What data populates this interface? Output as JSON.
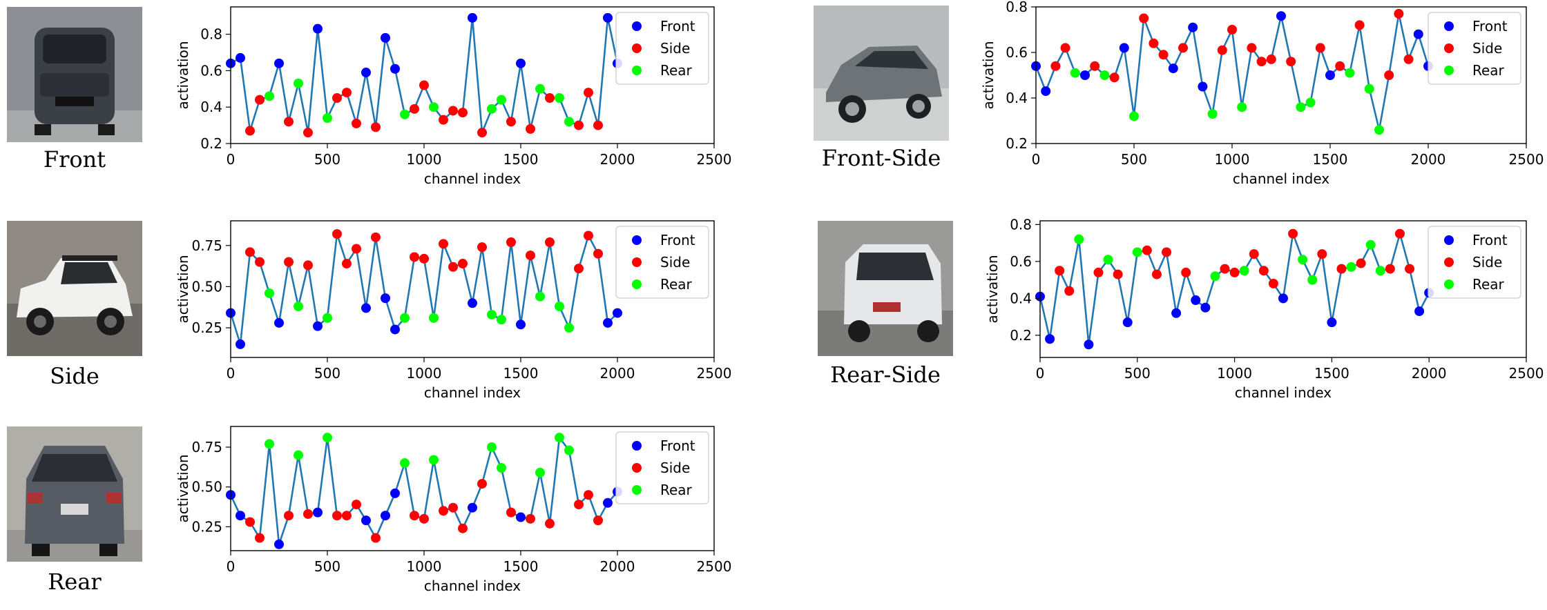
{
  "legend_labels": [
    "Front",
    "Side",
    "Rear"
  ],
  "colors": {
    "line": "#1f77b4",
    "Front": "#0000ff",
    "Side": "#ff0000",
    "Rear": "#00ff00",
    "frame": "#000000"
  },
  "axis_label_x": "channel index",
  "axis_label_y": "activation",
  "panels": [
    {
      "caption": "Front",
      "icon": "car-front-photo"
    },
    {
      "caption": "Front-Side",
      "icon": "car-front-side-photo"
    },
    {
      "caption": "Side",
      "icon": "car-side-photo"
    },
    {
      "caption": "Rear-Side",
      "icon": "car-rear-side-photo"
    },
    {
      "caption": "Rear",
      "icon": "car-rear-photo"
    }
  ],
  "chart_data": [
    {
      "type": "scatter",
      "xlabel": "channel index",
      "ylabel": "activation",
      "xlim": [
        0,
        2500
      ],
      "ylim": [
        0.2,
        0.95
      ],
      "xticks": [
        0,
        500,
        1000,
        1500,
        2000,
        2500
      ],
      "yticks": [
        0.2,
        0.4,
        0.6,
        0.8
      ],
      "ytick_labels": [
        "0.2",
        "0.4",
        "0.6",
        "0.8"
      ],
      "legend": "top-right",
      "x": [
        0,
        50,
        100,
        150,
        200,
        250,
        300,
        350,
        400,
        450,
        500,
        550,
        600,
        650,
        700,
        750,
        800,
        850,
        900,
        950,
        1000,
        1050,
        1100,
        1150,
        1200,
        1250,
        1300,
        1350,
        1400,
        1450,
        1500,
        1550,
        1600,
        1650,
        1700,
        1750,
        1800,
        1850,
        1900,
        1950,
        2000
      ],
      "values": [
        0.64,
        0.67,
        0.27,
        0.44,
        0.46,
        0.64,
        0.32,
        0.53,
        0.26,
        0.83,
        0.34,
        0.45,
        0.48,
        0.31,
        0.59,
        0.29,
        0.78,
        0.61,
        0.36,
        0.39,
        0.52,
        0.4,
        0.33,
        0.38,
        0.37,
        0.89,
        0.26,
        0.39,
        0.44,
        0.32,
        0.64,
        0.28,
        0.5,
        0.45,
        0.45,
        0.32,
        0.3,
        0.48,
        0.3,
        0.89,
        0.64
      ],
      "view": [
        "Front",
        "Front",
        "Side",
        "Side",
        "Rear",
        "Front",
        "Side",
        "Rear",
        "Side",
        "Front",
        "Rear",
        "Side",
        "Side",
        "Side",
        "Front",
        "Side",
        "Front",
        "Front",
        "Rear",
        "Side",
        "Side",
        "Rear",
        "Side",
        "Side",
        "Side",
        "Front",
        "Side",
        "Rear",
        "Rear",
        "Side",
        "Front",
        "Side",
        "Rear",
        "Side",
        "Rear",
        "Rear",
        "Side",
        "Side",
        "Side",
        "Front",
        "Front"
      ]
    },
    {
      "type": "scatter",
      "xlabel": "channel index",
      "ylabel": "activation",
      "xlim": [
        0,
        2500
      ],
      "ylim": [
        0.2,
        0.8
      ],
      "xticks": [
        0,
        500,
        1000,
        1500,
        2000,
        2500
      ],
      "yticks": [
        0.2,
        0.4,
        0.6,
        0.8
      ],
      "ytick_labels": [
        "0.2",
        "0.4",
        "0.6",
        "0.8"
      ],
      "legend": "top-right",
      "x": [
        0,
        50,
        100,
        150,
        200,
        250,
        300,
        350,
        400,
        450,
        500,
        550,
        600,
        650,
        700,
        750,
        800,
        850,
        900,
        950,
        1000,
        1050,
        1100,
        1150,
        1200,
        1250,
        1300,
        1350,
        1400,
        1450,
        1500,
        1550,
        1600,
        1650,
        1700,
        1750,
        1800,
        1850,
        1900,
        1950,
        2000
      ],
      "values": [
        0.54,
        0.43,
        0.54,
        0.62,
        0.51,
        0.5,
        0.54,
        0.5,
        0.49,
        0.62,
        0.32,
        0.75,
        0.64,
        0.59,
        0.53,
        0.62,
        0.71,
        0.45,
        0.33,
        0.61,
        0.7,
        0.36,
        0.62,
        0.56,
        0.57,
        0.76,
        0.56,
        0.36,
        0.38,
        0.62,
        0.5,
        0.54,
        0.51,
        0.72,
        0.44,
        0.26,
        0.5,
        0.77,
        0.57,
        0.68,
        0.54
      ],
      "view": [
        "Front",
        "Front",
        "Side",
        "Side",
        "Rear",
        "Front",
        "Side",
        "Rear",
        "Side",
        "Front",
        "Rear",
        "Side",
        "Side",
        "Side",
        "Front",
        "Side",
        "Front",
        "Front",
        "Rear",
        "Side",
        "Side",
        "Rear",
        "Side",
        "Side",
        "Side",
        "Front",
        "Side",
        "Rear",
        "Rear",
        "Side",
        "Front",
        "Side",
        "Rear",
        "Side",
        "Rear",
        "Rear",
        "Side",
        "Side",
        "Side",
        "Front",
        "Front"
      ]
    },
    {
      "type": "scatter",
      "xlabel": "channel index",
      "ylabel": "activation",
      "xlim": [
        0,
        2500
      ],
      "ylim": [
        0.07,
        0.9
      ],
      "xticks": [
        0,
        500,
        1000,
        1500,
        2000,
        2500
      ],
      "yticks": [
        0.25,
        0.5,
        0.75
      ],
      "ytick_labels": [
        "0.25",
        "0.50",
        "0.75"
      ],
      "legend": "top-right",
      "x": [
        0,
        50,
        100,
        150,
        200,
        250,
        300,
        350,
        400,
        450,
        500,
        550,
        600,
        650,
        700,
        750,
        800,
        850,
        900,
        950,
        1000,
        1050,
        1100,
        1150,
        1200,
        1250,
        1300,
        1350,
        1400,
        1450,
        1500,
        1550,
        1600,
        1650,
        1700,
        1750,
        1800,
        1850,
        1900,
        1950,
        2000
      ],
      "values": [
        0.34,
        0.15,
        0.71,
        0.65,
        0.46,
        0.28,
        0.65,
        0.38,
        0.63,
        0.26,
        0.31,
        0.82,
        0.64,
        0.73,
        0.37,
        0.8,
        0.43,
        0.24,
        0.31,
        0.68,
        0.67,
        0.31,
        0.76,
        0.62,
        0.64,
        0.4,
        0.74,
        0.33,
        0.3,
        0.77,
        0.27,
        0.69,
        0.44,
        0.77,
        0.38,
        0.25,
        0.61,
        0.81,
        0.7,
        0.28,
        0.34
      ],
      "view": [
        "Front",
        "Front",
        "Side",
        "Side",
        "Rear",
        "Front",
        "Side",
        "Rear",
        "Side",
        "Front",
        "Rear",
        "Side",
        "Side",
        "Side",
        "Front",
        "Side",
        "Front",
        "Front",
        "Rear",
        "Side",
        "Side",
        "Rear",
        "Side",
        "Side",
        "Side",
        "Front",
        "Side",
        "Rear",
        "Rear",
        "Side",
        "Front",
        "Side",
        "Rear",
        "Side",
        "Rear",
        "Rear",
        "Side",
        "Side",
        "Side",
        "Front",
        "Front"
      ]
    },
    {
      "type": "scatter",
      "xlabel": "channel index",
      "ylabel": "activation",
      "xlim": [
        0,
        2500
      ],
      "ylim": [
        0.08,
        0.82
      ],
      "xticks": [
        0,
        500,
        1000,
        1500,
        2000,
        2500
      ],
      "yticks": [
        0.2,
        0.4,
        0.6,
        0.8
      ],
      "ytick_labels": [
        "0.2",
        "0.4",
        "0.6",
        "0.8"
      ],
      "legend": "top-right",
      "x": [
        0,
        50,
        100,
        150,
        200,
        250,
        300,
        350,
        400,
        450,
        500,
        550,
        600,
        650,
        700,
        750,
        800,
        850,
        900,
        950,
        1000,
        1050,
        1100,
        1150,
        1200,
        1250,
        1300,
        1350,
        1400,
        1450,
        1500,
        1550,
        1600,
        1650,
        1700,
        1750,
        1800,
        1850,
        1900,
        1950,
        2000
      ],
      "values": [
        0.41,
        0.18,
        0.55,
        0.44,
        0.72,
        0.15,
        0.54,
        0.61,
        0.53,
        0.27,
        0.65,
        0.66,
        0.53,
        0.65,
        0.32,
        0.54,
        0.39,
        0.35,
        0.52,
        0.56,
        0.54,
        0.55,
        0.64,
        0.55,
        0.48,
        0.4,
        0.75,
        0.61,
        0.5,
        0.64,
        0.27,
        0.56,
        0.57,
        0.59,
        0.69,
        0.55,
        0.56,
        0.75,
        0.56,
        0.33,
        0.43
      ],
      "view": [
        "Front",
        "Front",
        "Side",
        "Side",
        "Rear",
        "Front",
        "Side",
        "Rear",
        "Side",
        "Front",
        "Rear",
        "Side",
        "Side",
        "Side",
        "Front",
        "Side",
        "Front",
        "Front",
        "Rear",
        "Side",
        "Side",
        "Rear",
        "Side",
        "Side",
        "Side",
        "Front",
        "Side",
        "Rear",
        "Rear",
        "Side",
        "Front",
        "Side",
        "Rear",
        "Side",
        "Rear",
        "Rear",
        "Side",
        "Side",
        "Side",
        "Front",
        "Front"
      ]
    },
    {
      "type": "scatter",
      "xlabel": "channel index",
      "ylabel": "activation",
      "xlim": [
        0,
        2500
      ],
      "ylim": [
        0.1,
        0.88
      ],
      "xticks": [
        0,
        500,
        1000,
        1500,
        2000,
        2500
      ],
      "yticks": [
        0.25,
        0.5,
        0.75
      ],
      "ytick_labels": [
        "0.25",
        "0.50",
        "0.75"
      ],
      "legend": "top-right",
      "x": [
        0,
        50,
        100,
        150,
        200,
        250,
        300,
        350,
        400,
        450,
        500,
        550,
        600,
        650,
        700,
        750,
        800,
        850,
        900,
        950,
        1000,
        1050,
        1100,
        1150,
        1200,
        1250,
        1300,
        1350,
        1400,
        1450,
        1500,
        1550,
        1600,
        1650,
        1700,
        1750,
        1800,
        1850,
        1900,
        1950,
        2000
      ],
      "values": [
        0.45,
        0.32,
        0.28,
        0.18,
        0.77,
        0.14,
        0.32,
        0.7,
        0.33,
        0.34,
        0.81,
        0.32,
        0.32,
        0.39,
        0.29,
        0.18,
        0.32,
        0.46,
        0.65,
        0.32,
        0.3,
        0.67,
        0.35,
        0.37,
        0.24,
        0.37,
        0.52,
        0.75,
        0.62,
        0.34,
        0.31,
        0.3,
        0.59,
        0.27,
        0.81,
        0.73,
        0.39,
        0.45,
        0.29,
        0.4,
        0.47
      ],
      "view": [
        "Front",
        "Front",
        "Side",
        "Side",
        "Rear",
        "Front",
        "Side",
        "Rear",
        "Side",
        "Front",
        "Rear",
        "Side",
        "Side",
        "Side",
        "Front",
        "Side",
        "Front",
        "Front",
        "Rear",
        "Side",
        "Side",
        "Rear",
        "Side",
        "Side",
        "Side",
        "Front",
        "Side",
        "Rear",
        "Rear",
        "Side",
        "Front",
        "Side",
        "Rear",
        "Side",
        "Rear",
        "Rear",
        "Side",
        "Side",
        "Side",
        "Front",
        "Front"
      ]
    }
  ]
}
